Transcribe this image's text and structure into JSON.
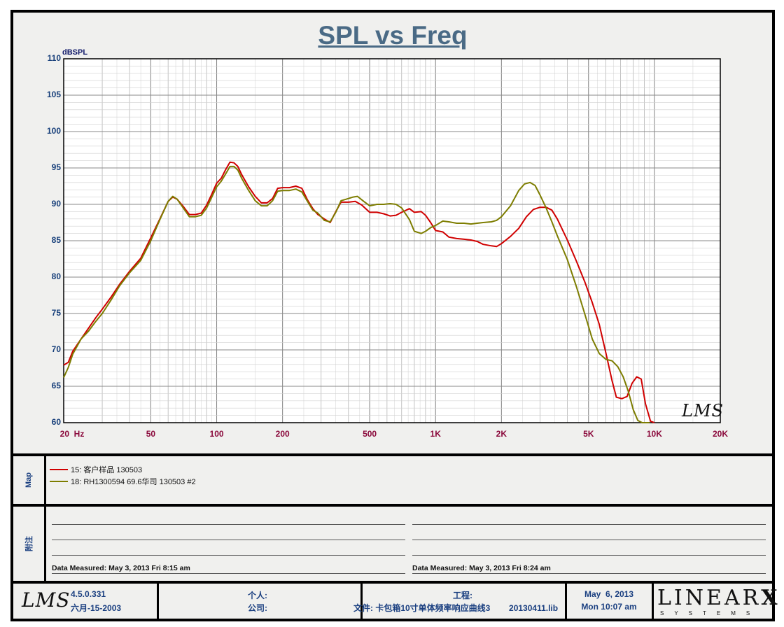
{
  "chart_data": {
    "type": "line",
    "title": "SPL vs Freq",
    "ylabel": "dBSPL",
    "xscale": "log",
    "xlim": [
      20,
      20000
    ],
    "ylim": [
      60,
      110
    ],
    "yticks": [
      110,
      105,
      100,
      95,
      90,
      85,
      80,
      75,
      70,
      65,
      60
    ],
    "xtick_labels": [
      {
        "value": 20,
        "label": "20  Hz"
      },
      {
        "value": 50,
        "label": "50"
      },
      {
        "value": 100,
        "label": "100"
      },
      {
        "value": 200,
        "label": "200"
      },
      {
        "value": 500,
        "label": "500"
      },
      {
        "value": 1000,
        "label": "1K"
      },
      {
        "value": 2000,
        "label": "2K"
      },
      {
        "value": 5000,
        "label": "5K"
      },
      {
        "value": 10000,
        "label": "10K"
      },
      {
        "value": 20000,
        "label": "20K"
      }
    ],
    "grid": true,
    "series": [
      {
        "name": "15: 客户样品       130503",
        "color": "#d00000",
        "points": [
          [
            20,
            67.9
          ],
          [
            21,
            68.3
          ],
          [
            22,
            69.8
          ],
          [
            24,
            71.5
          ],
          [
            26,
            73.0
          ],
          [
            28,
            74.4
          ],
          [
            30,
            75.6
          ],
          [
            33,
            77.3
          ],
          [
            36,
            79.0
          ],
          [
            40,
            80.8
          ],
          [
            45,
            82.6
          ],
          [
            50,
            85.4
          ],
          [
            55,
            88.0
          ],
          [
            60,
            90.4
          ],
          [
            63,
            91.0
          ],
          [
            66,
            90.7
          ],
          [
            70,
            89.8
          ],
          [
            75,
            88.6
          ],
          [
            80,
            88.6
          ],
          [
            85,
            88.8
          ],
          [
            90,
            89.9
          ],
          [
            95,
            91.4
          ],
          [
            100,
            92.9
          ],
          [
            105,
            93.6
          ],
          [
            110,
            94.8
          ],
          [
            115,
            95.8
          ],
          [
            120,
            95.7
          ],
          [
            125,
            95.2
          ],
          [
            130,
            94.1
          ],
          [
            140,
            92.4
          ],
          [
            150,
            91.1
          ],
          [
            160,
            90.2
          ],
          [
            170,
            90.2
          ],
          [
            180,
            90.8
          ],
          [
            190,
            92.2
          ],
          [
            200,
            92.3
          ],
          [
            215,
            92.3
          ],
          [
            230,
            92.5
          ],
          [
            245,
            92.2
          ],
          [
            260,
            90.6
          ],
          [
            275,
            89.4
          ],
          [
            290,
            88.6
          ],
          [
            310,
            88.0
          ],
          [
            330,
            87.5
          ],
          [
            350,
            89.0
          ],
          [
            370,
            90.3
          ],
          [
            400,
            90.3
          ],
          [
            430,
            90.4
          ],
          [
            460,
            89.9
          ],
          [
            500,
            88.9
          ],
          [
            540,
            88.9
          ],
          [
            580,
            88.7
          ],
          [
            620,
            88.4
          ],
          [
            660,
            88.5
          ],
          [
            700,
            88.9
          ],
          [
            760,
            89.4
          ],
          [
            800,
            88.9
          ],
          [
            860,
            89.0
          ],
          [
            900,
            88.5
          ],
          [
            950,
            87.5
          ],
          [
            1000,
            86.4
          ],
          [
            1080,
            86.2
          ],
          [
            1150,
            85.5
          ],
          [
            1250,
            85.3
          ],
          [
            1350,
            85.2
          ],
          [
            1450,
            85.1
          ],
          [
            1550,
            84.9
          ],
          [
            1650,
            84.5
          ],
          [
            1800,
            84.3
          ],
          [
            1900,
            84.2
          ],
          [
            2000,
            84.6
          ],
          [
            2200,
            85.6
          ],
          [
            2400,
            86.7
          ],
          [
            2600,
            88.3
          ],
          [
            2800,
            89.3
          ],
          [
            3000,
            89.6
          ],
          [
            3200,
            89.6
          ],
          [
            3400,
            89.2
          ],
          [
            3600,
            88.0
          ],
          [
            4000,
            85.1
          ],
          [
            4400,
            82.2
          ],
          [
            4800,
            79.4
          ],
          [
            5200,
            76.5
          ],
          [
            5600,
            73.5
          ],
          [
            6000,
            69.6
          ],
          [
            6400,
            65.8
          ],
          [
            6700,
            63.5
          ],
          [
            7100,
            63.3
          ],
          [
            7500,
            63.6
          ],
          [
            7900,
            65.4
          ],
          [
            8300,
            66.3
          ],
          [
            8700,
            66.0
          ],
          [
            9100,
            62.6
          ],
          [
            9600,
            60.2
          ],
          [
            10000,
            59.5
          ]
        ]
      },
      {
        "name": "18: RH1300594  69.6华司 130503 #2",
        "color": "#7d7d00",
        "points": [
          [
            20,
            66.2
          ],
          [
            21,
            67.6
          ],
          [
            22,
            69.4
          ],
          [
            24,
            71.5
          ],
          [
            26,
            72.6
          ],
          [
            28,
            73.9
          ],
          [
            30,
            75.0
          ],
          [
            33,
            76.9
          ],
          [
            36,
            78.8
          ],
          [
            40,
            80.6
          ],
          [
            45,
            82.3
          ],
          [
            50,
            85.0
          ],
          [
            55,
            87.9
          ],
          [
            60,
            90.4
          ],
          [
            63,
            91.1
          ],
          [
            66,
            90.7
          ],
          [
            70,
            89.6
          ],
          [
            75,
            88.3
          ],
          [
            80,
            88.3
          ],
          [
            85,
            88.5
          ],
          [
            90,
            89.5
          ],
          [
            95,
            91.0
          ],
          [
            100,
            92.4
          ],
          [
            105,
            93.2
          ],
          [
            110,
            94.2
          ],
          [
            115,
            95.2
          ],
          [
            120,
            95.2
          ],
          [
            125,
            94.7
          ],
          [
            130,
            93.6
          ],
          [
            140,
            91.9
          ],
          [
            150,
            90.5
          ],
          [
            160,
            89.8
          ],
          [
            170,
            89.8
          ],
          [
            180,
            90.5
          ],
          [
            190,
            91.8
          ],
          [
            200,
            91.9
          ],
          [
            215,
            91.9
          ],
          [
            230,
            92.1
          ],
          [
            245,
            91.7
          ],
          [
            260,
            90.4
          ],
          [
            275,
            89.2
          ],
          [
            290,
            88.8
          ],
          [
            310,
            87.8
          ],
          [
            330,
            87.6
          ],
          [
            350,
            88.9
          ],
          [
            370,
            90.5
          ],
          [
            400,
            90.8
          ],
          [
            420,
            91.0
          ],
          [
            440,
            91.1
          ],
          [
            470,
            90.4
          ],
          [
            500,
            89.8
          ],
          [
            540,
            90.0
          ],
          [
            580,
            90.0
          ],
          [
            620,
            90.1
          ],
          [
            660,
            90.0
          ],
          [
            700,
            89.5
          ],
          [
            760,
            87.9
          ],
          [
            800,
            86.3
          ],
          [
            860,
            86.0
          ],
          [
            900,
            86.3
          ],
          [
            950,
            86.8
          ],
          [
            1000,
            87.1
          ],
          [
            1080,
            87.7
          ],
          [
            1150,
            87.6
          ],
          [
            1250,
            87.4
          ],
          [
            1350,
            87.4
          ],
          [
            1450,
            87.3
          ],
          [
            1550,
            87.4
          ],
          [
            1650,
            87.5
          ],
          [
            1800,
            87.6
          ],
          [
            1900,
            87.8
          ],
          [
            2000,
            88.3
          ],
          [
            2200,
            89.8
          ],
          [
            2400,
            91.9
          ],
          [
            2550,
            92.8
          ],
          [
            2700,
            93.0
          ],
          [
            2850,
            92.6
          ],
          [
            3000,
            91.3
          ],
          [
            3200,
            89.5
          ],
          [
            3400,
            87.6
          ],
          [
            3600,
            85.7
          ],
          [
            4000,
            82.4
          ],
          [
            4400,
            78.7
          ],
          [
            4800,
            75.0
          ],
          [
            5200,
            71.5
          ],
          [
            5600,
            69.5
          ],
          [
            6000,
            68.7
          ],
          [
            6400,
            68.5
          ],
          [
            6800,
            67.7
          ],
          [
            7200,
            66.3
          ],
          [
            7600,
            64.3
          ],
          [
            8000,
            61.8
          ],
          [
            8400,
            60.3
          ],
          [
            8800,
            59.5
          ],
          [
            9500,
            59.3
          ]
        ]
      }
    ]
  },
  "legend_panel_label": "Map",
  "notes_panel_label": "附注",
  "measured": {
    "left": "Data Measured: May  3, 2013  Fri  8:15 am",
    "right": "Data Measured: May  3, 2013  Fri  8:24 am"
  },
  "watermark": "LMS",
  "footer": {
    "logo": "LMS",
    "version": "4.5.0.331",
    "version_date": "六月-15-2003",
    "person_label": "个人:",
    "company_label": "公司:",
    "project_label": "工程:",
    "file_label": "文件: 卡包箱10寸单体频率响应曲线3        20130411.lib",
    "date_line1": "May  6, 2013",
    "date_line2": "Mon 10:07 am",
    "brand": "LINEAR",
    "brand_x": "X",
    "brand_sub": "SYSTEMS"
  }
}
